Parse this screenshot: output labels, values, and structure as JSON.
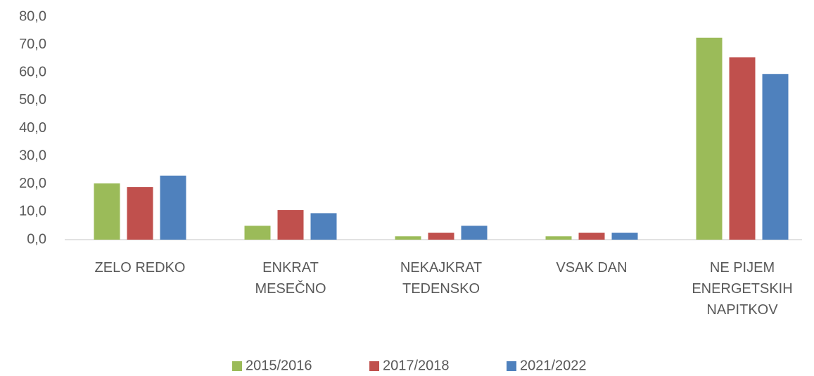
{
  "chart_data": {
    "type": "bar",
    "categories": [
      "ZELO REDKO",
      "ENKRAT MESEČNO",
      "NEKAJKRAT TEDENSKO",
      "VSAK DAN",
      "NE PIJEM ENERGETSKIH NAPITKOV"
    ],
    "series": [
      {
        "name": "2015/2016",
        "color": "#9bbb59",
        "values": [
          20.2,
          5.0,
          1.2,
          1.2,
          72.5
        ]
      },
      {
        "name": "2017/2018",
        "color": "#c0504d",
        "values": [
          18.9,
          10.6,
          2.5,
          2.5,
          65.5
        ]
      },
      {
        "name": "2021/2022",
        "color": "#4f81bd",
        "values": [
          23.0,
          9.5,
          5.0,
          2.5,
          59.5
        ]
      }
    ],
    "ylim": [
      0,
      80
    ],
    "yticks": [
      {
        "value": 0,
        "label": "0,0"
      },
      {
        "value": 10,
        "label": "10,0"
      },
      {
        "value": 20,
        "label": "20,0"
      },
      {
        "value": 30,
        "label": "30,0"
      },
      {
        "value": 40,
        "label": "40,0"
      },
      {
        "value": 50,
        "label": "50,0"
      },
      {
        "value": 60,
        "label": "60,0"
      },
      {
        "value": 70,
        "label": "70,0"
      },
      {
        "value": 80,
        "label": "80,0"
      }
    ],
    "grid": false,
    "legend": "bottom"
  }
}
